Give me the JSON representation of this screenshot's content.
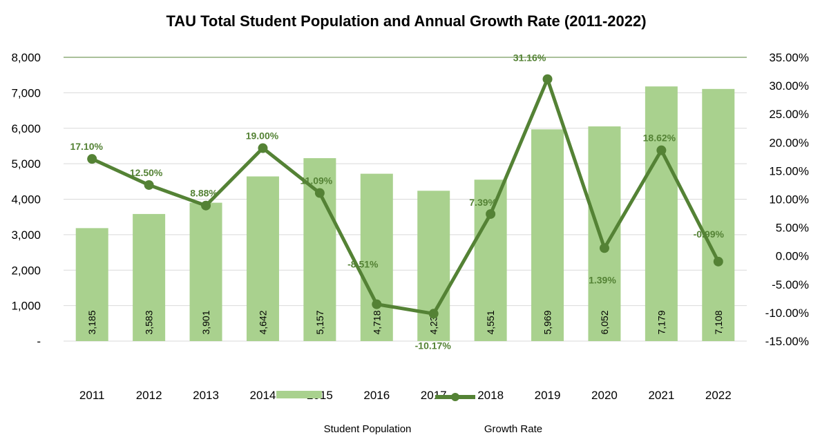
{
  "chart_data": {
    "type": "bar",
    "title": "TAU Total Student Population and Annual Growth Rate (2011-2022)",
    "xlabel": "",
    "categories": [
      "2011",
      "2012",
      "2013",
      "2014",
      "2015",
      "2016",
      "2017",
      "2018",
      "2019",
      "2020",
      "2021",
      "2022"
    ],
    "series": [
      {
        "name": "Student Population",
        "type": "bar",
        "axis": "left",
        "values": [
          3185,
          3583,
          3901,
          4642,
          5157,
          4718,
          4238,
          4551,
          5969,
          6052,
          7179,
          7108
        ],
        "labels": [
          "3,185",
          "3,583",
          "3,901",
          "4,642",
          "5,157",
          "4,718",
          "4,238",
          "4,551",
          "5,969",
          "6,052",
          "7,179",
          "7,108"
        ]
      },
      {
        "name": "Growth Rate",
        "type": "line",
        "axis": "right",
        "values": [
          17.1,
          12.5,
          8.88,
          19.0,
          11.09,
          -8.51,
          -10.17,
          7.39,
          31.16,
          1.39,
          18.62,
          -0.99
        ],
        "labels": [
          "17.10%",
          "12.50%",
          "8.88%",
          "19.00%",
          "11.09%",
          "-8.51%",
          "-10.17%",
          "7.39%",
          "31.16%",
          "1.39%",
          "18.62%",
          "-0.99%"
        ]
      }
    ],
    "left_axis": {
      "ylim": [
        0,
        8000
      ],
      "ticks": [
        0,
        1000,
        2000,
        3000,
        4000,
        5000,
        6000,
        7000,
        8000
      ],
      "tick_labels": [
        "-",
        "1,000",
        "2,000",
        "3,000",
        "4,000",
        "5,000",
        "6,000",
        "7,000",
        "8,000"
      ]
    },
    "right_axis": {
      "ylim": [
        -15,
        35
      ],
      "ticks": [
        -15,
        -10,
        -5,
        0,
        5,
        10,
        15,
        20,
        25,
        30,
        35
      ],
      "tick_labels": [
        "-15.00%",
        "-10.00%",
        "-5.00%",
        "0.00%",
        "5.00%",
        "10.00%",
        "15.00%",
        "20.00%",
        "25.00%",
        "30.00%",
        "35.00%"
      ]
    },
    "grid": true,
    "legend": "bottom",
    "colors": {
      "bar": "#a9d18e",
      "line": "#548235",
      "grid": "#d9d9d9",
      "top_line": "#548235",
      "rate_label": "#548235"
    }
  }
}
